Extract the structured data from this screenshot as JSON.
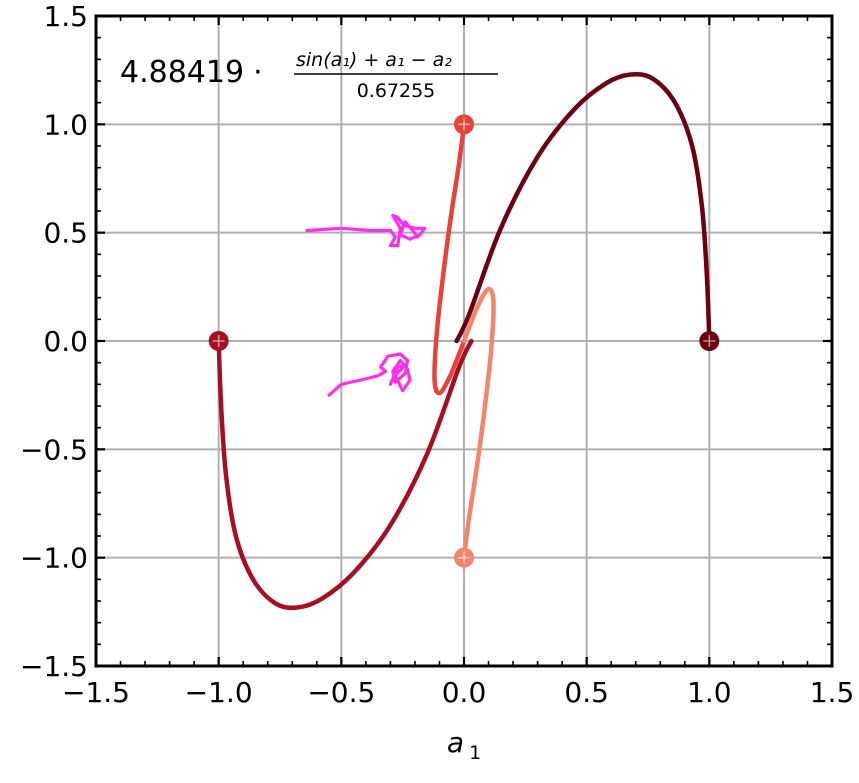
{
  "chart_data": {
    "type": "line",
    "title": "",
    "xlabel": "a",
    "xlabel_subscript": "1",
    "ylabel": "",
    "xlim": [
      -1.5,
      1.5
    ],
    "ylim": [
      -1.5,
      1.5
    ],
    "grid": true,
    "xticks": [
      -1.5,
      -1.0,
      -0.5,
      0.0,
      0.5,
      1.0,
      1.5
    ],
    "xtick_labels": [
      "−1.5",
      "−1.0",
      "−0.5",
      "0.0",
      "0.5",
      "1.0",
      "1.5"
    ],
    "yticks": [
      -1.5,
      -1.0,
      -0.5,
      0.0,
      0.5,
      1.0,
      1.5
    ],
    "ytick_labels": [
      "−1.5",
      "−1.0",
      "−0.5",
      "0.0",
      "0.5",
      "1.0",
      "1.5"
    ],
    "annotation": {
      "coefficient": "4.88419",
      "dot": "·",
      "numerator": "sin(a₁) + a₁ − a₂",
      "denominator": "0.67255"
    },
    "series": [
      {
        "name": "trajectory-dark",
        "color": "#6b0010",
        "points": [
          [
            1.0,
            0.0
          ],
          [
            0.99,
            0.3
          ],
          [
            0.97,
            0.62
          ],
          [
            0.93,
            0.9
          ],
          [
            0.86,
            1.1
          ],
          [
            0.77,
            1.21
          ],
          [
            0.68,
            1.23
          ],
          [
            0.58,
            1.19
          ],
          [
            0.45,
            1.07
          ],
          [
            0.3,
            0.85
          ],
          [
            0.15,
            0.52
          ],
          [
            0.02,
            0.12
          ],
          [
            -0.03,
            0.0
          ]
        ],
        "markers": [
          [
            1.0,
            0.0
          ]
        ]
      },
      {
        "name": "trajectory-crimson",
        "color": "#a50f22",
        "points": [
          [
            -1.0,
            0.0
          ],
          [
            -0.99,
            -0.3
          ],
          [
            -0.97,
            -0.62
          ],
          [
            -0.93,
            -0.9
          ],
          [
            -0.86,
            -1.1
          ],
          [
            -0.77,
            -1.21
          ],
          [
            -0.68,
            -1.23
          ],
          [
            -0.58,
            -1.19
          ],
          [
            -0.45,
            -1.07
          ],
          [
            -0.3,
            -0.85
          ],
          [
            -0.15,
            -0.52
          ],
          [
            -0.02,
            -0.12
          ],
          [
            0.03,
            0.0
          ]
        ],
        "markers": [
          [
            -1.0,
            0.0
          ]
        ]
      },
      {
        "name": "trajectory-red",
        "color": "#e8433a",
        "points": [
          [
            0.0,
            1.0
          ],
          [
            -0.02,
            0.82
          ],
          [
            -0.05,
            0.6
          ],
          [
            -0.08,
            0.35
          ],
          [
            -0.11,
            0.05
          ],
          [
            -0.12,
            -0.18
          ],
          [
            -0.1,
            -0.24
          ],
          [
            -0.06,
            -0.17
          ],
          [
            -0.02,
            -0.06
          ],
          [
            0.0,
            0.0
          ]
        ],
        "markers": [
          [
            0.0,
            1.0
          ]
        ]
      },
      {
        "name": "trajectory-salmon",
        "color": "#f4846a",
        "points": [
          [
            0.0,
            -1.0
          ],
          [
            0.02,
            -0.82
          ],
          [
            0.05,
            -0.6
          ],
          [
            0.08,
            -0.35
          ],
          [
            0.11,
            -0.05
          ],
          [
            0.12,
            0.18
          ],
          [
            0.1,
            0.24
          ],
          [
            0.06,
            0.17
          ],
          [
            0.02,
            0.06
          ],
          [
            0.0,
            0.0
          ]
        ],
        "markers": [
          [
            0.0,
            -1.0
          ]
        ]
      }
    ],
    "doodles": [
      {
        "name": "arrow-doodle-upper",
        "color": "#ff2ef0",
        "points": [
          [
            -0.64,
            0.51
          ],
          [
            -0.5,
            0.52
          ],
          [
            -0.38,
            0.51
          ],
          [
            -0.3,
            0.51
          ],
          [
            -0.28,
            0.48
          ],
          [
            -0.3,
            0.44
          ],
          [
            -0.27,
            0.44
          ],
          [
            -0.26,
            0.52
          ],
          [
            -0.29,
            0.58
          ],
          [
            -0.27,
            0.57
          ],
          [
            -0.25,
            0.54
          ],
          [
            -0.23,
            0.53
          ],
          [
            -0.2,
            0.52
          ],
          [
            -0.16,
            0.52
          ],
          [
            -0.18,
            0.49
          ],
          [
            -0.22,
            0.47
          ],
          [
            -0.26,
            0.49
          ],
          [
            -0.24,
            0.55
          ],
          [
            -0.21,
            0.51
          ],
          [
            -0.19,
            0.48
          ]
        ]
      },
      {
        "name": "arrow-doodle-lower",
        "color": "#ff2ef0",
        "points": [
          [
            -0.55,
            -0.25
          ],
          [
            -0.5,
            -0.2
          ],
          [
            -0.42,
            -0.18
          ],
          [
            -0.35,
            -0.16
          ],
          [
            -0.32,
            -0.14
          ],
          [
            -0.34,
            -0.12
          ],
          [
            -0.31,
            -0.07
          ],
          [
            -0.26,
            -0.06
          ],
          [
            -0.23,
            -0.09
          ],
          [
            -0.24,
            -0.15
          ],
          [
            -0.28,
            -0.19
          ],
          [
            -0.29,
            -0.14
          ],
          [
            -0.26,
            -0.09
          ],
          [
            -0.23,
            -0.13
          ],
          [
            -0.22,
            -0.18
          ],
          [
            -0.25,
            -0.23
          ],
          [
            -0.28,
            -0.16
          ],
          [
            -0.24,
            -0.11
          ],
          [
            -0.27,
            -0.12
          ],
          [
            -0.3,
            -0.2
          ]
        ]
      }
    ]
  }
}
